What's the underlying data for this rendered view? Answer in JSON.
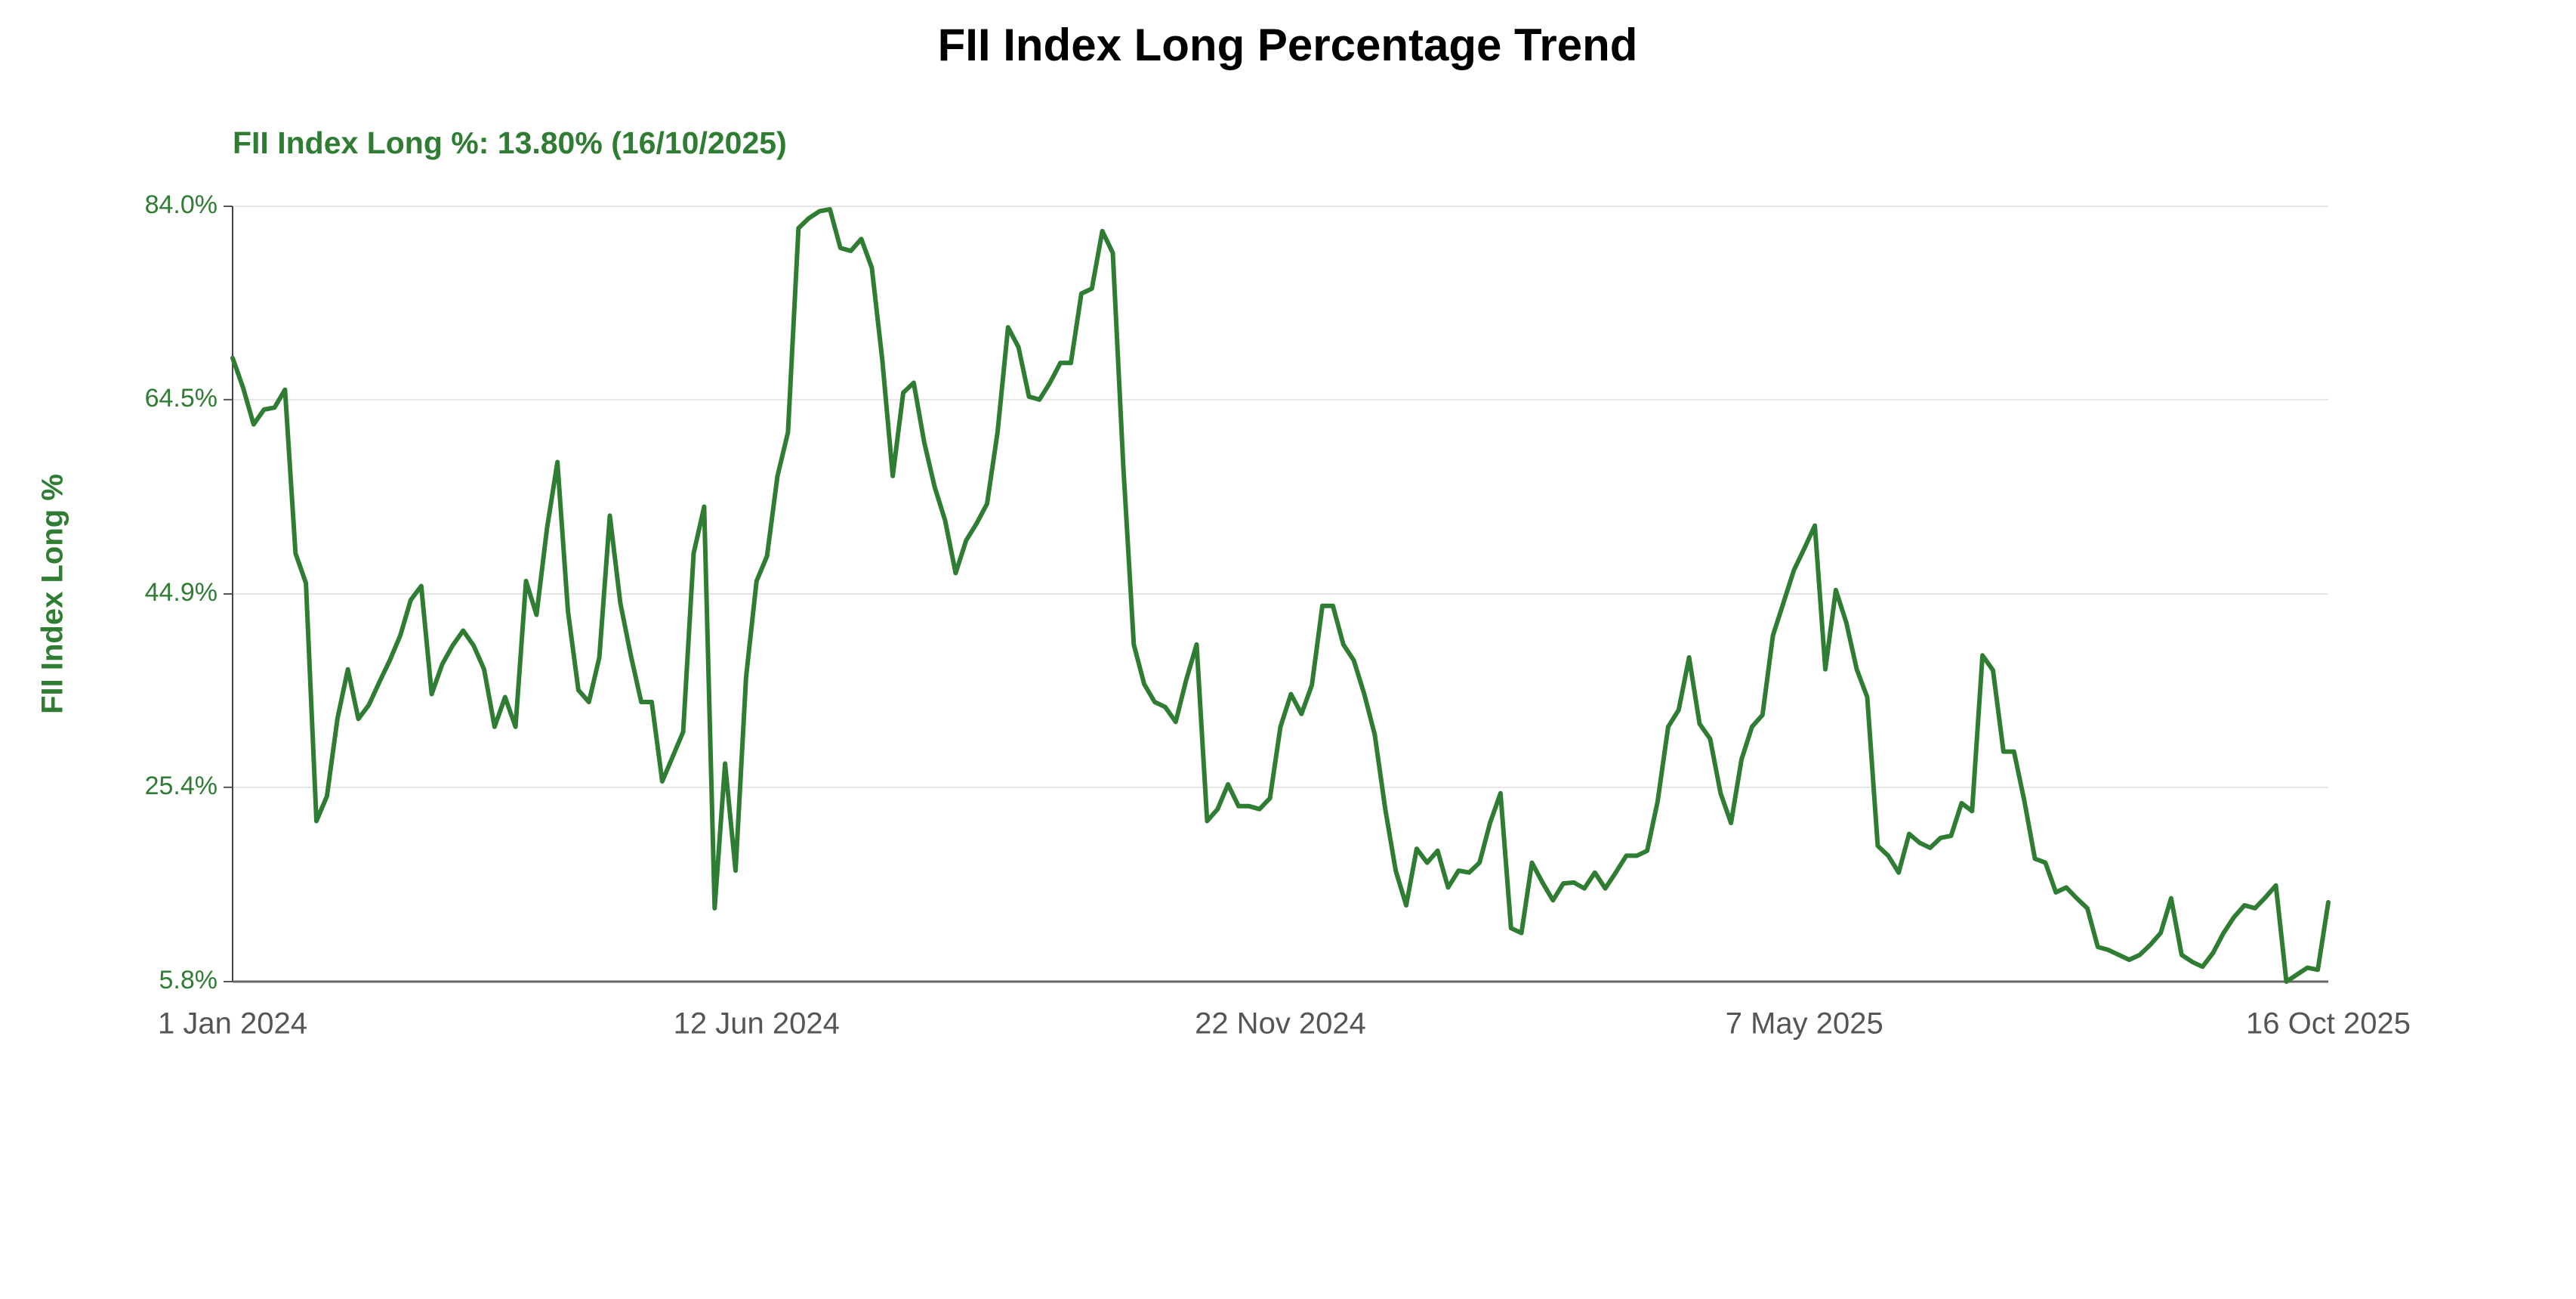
{
  "chart_data": {
    "type": "line",
    "title": "FII Index Long Percentage Trend",
    "annotation": "FII Index Long %: 13.80% (16/10/2025)",
    "ylabel": "FII Index Long %",
    "color": "#2e7d32",
    "grid": true,
    "ylim": [
      5.8,
      84.0
    ],
    "yticks": [
      {
        "value": 5.8,
        "label": "5.8%"
      },
      {
        "value": 25.4,
        "label": "25.4%"
      },
      {
        "value": 44.9,
        "label": "44.9%"
      },
      {
        "value": 64.5,
        "label": "64.5%"
      },
      {
        "value": 84.0,
        "label": "84.0%"
      }
    ],
    "categories": [
      "1 Jan 2024",
      null,
      null,
      null,
      null,
      null,
      null,
      null,
      null,
      null,
      null,
      null,
      null,
      null,
      null,
      null,
      null,
      null,
      null,
      null,
      null,
      null,
      null,
      null,
      null,
      null,
      null,
      null,
      null,
      null,
      null,
      null,
      null,
      null,
      null,
      null,
      null,
      null,
      null,
      null,
      null,
      null,
      null,
      null,
      null,
      null,
      null,
      null,
      null,
      null,
      "12 Jun 2024",
      null,
      null,
      null,
      null,
      null,
      null,
      null,
      null,
      null,
      null,
      null,
      null,
      null,
      null,
      null,
      null,
      null,
      null,
      null,
      null,
      null,
      null,
      null,
      null,
      null,
      null,
      null,
      null,
      null,
      null,
      null,
      null,
      null,
      null,
      null,
      null,
      null,
      null,
      null,
      null,
      null,
      null,
      null,
      null,
      null,
      null,
      null,
      null,
      null,
      "22 Nov 2024",
      null,
      null,
      null,
      null,
      null,
      null,
      null,
      null,
      null,
      null,
      null,
      null,
      null,
      null,
      null,
      null,
      null,
      null,
      null,
      null,
      null,
      null,
      null,
      null,
      null,
      null,
      null,
      null,
      null,
      null,
      null,
      null,
      null,
      null,
      null,
      null,
      null,
      null,
      null,
      null,
      null,
      null,
      null,
      null,
      null,
      null,
      null,
      null,
      null,
      "7 May 2025",
      null,
      null,
      null,
      null,
      null,
      null,
      null,
      null,
      null,
      null,
      null,
      null,
      null,
      null,
      null,
      null,
      null,
      null,
      null,
      null,
      null,
      null,
      null,
      null,
      null,
      null,
      null,
      null,
      null,
      null,
      null,
      null,
      null,
      null,
      null,
      null,
      null,
      null,
      null,
      null,
      null,
      null,
      null,
      null,
      null,
      null,
      null,
      null,
      null,
      "16 Oct 2025"
    ],
    "values": [
      68.7,
      65.7,
      62,
      63.5,
      63.7,
      65.5,
      49,
      46,
      22,
      24.5,
      32.3,
      37.3,
      32.3,
      33.7,
      36,
      38.2,
      40.7,
      44.3,
      45.7,
      34.8,
      37.8,
      39.7,
      41.2,
      39.7,
      37.3,
      31.5,
      34.5,
      31.5,
      46.2,
      42.8,
      51.5,
      58.2,
      43.2,
      35.2,
      34,
      38.5,
      52.8,
      44,
      38.7,
      34,
      34,
      26,
      28.5,
      31,
      49,
      53.7,
      13.2,
      27.8,
      17,
      36.5,
      46.2,
      48.7,
      56.8,
      61.2,
      81.8,
      82.8,
      83.5,
      83.7,
      79.8,
      79.5,
      80.7,
      77.8,
      68.5,
      56.8,
      65.2,
      66.2,
      60.2,
      55.7,
      52.3,
      47,
      50.3,
      52,
      54,
      61.2,
      71.8,
      69.8,
      64.8,
      64.5,
      66.2,
      68.2,
      68.2,
      75.2,
      75.7,
      81.5,
      79.3,
      57.8,
      39.8,
      35.8,
      34,
      33.5,
      32,
      36.2,
      39.8,
      22,
      23.2,
      25.7,
      23.5,
      23.5,
      23.2,
      24.3,
      31.5,
      34.8,
      32.8,
      35.7,
      43.7,
      43.7,
      39.8,
      38.2,
      34.8,
      30.7,
      23.2,
      17,
      13.5,
      19.2,
      17.8,
      19,
      15.3,
      17,
      16.8,
      17.8,
      21.8,
      24.8,
      11.2,
      10.7,
      17.8,
      15.8,
      14,
      15.7,
      15.8,
      15.2,
      16.8,
      15.2,
      16.8,
      18.5,
      18.5,
      19,
      24,
      31.5,
      33.2,
      38.5,
      31.8,
      30.3,
      24.8,
      21.8,
      28.2,
      31.5,
      32.7,
      40.7,
      44,
      47.3,
      49.5,
      51.8,
      37.3,
      45.3,
      42,
      37.3,
      34.5,
      19.5,
      18.5,
      16.8,
      20.7,
      19.8,
      19.3,
      20.3,
      20.5,
      23.8,
      23,
      38.7,
      37.2,
      29,
      29,
      24,
      18.2,
      17.8,
      14.8,
      15.3,
      14.2,
      13.2,
      9.3,
      9,
      8.5,
      8,
      8.5,
      9.5,
      10.7,
      14.2,
      8.5,
      7.8,
      7.3,
      8.7,
      10.7,
      12.3,
      13.5,
      13.2,
      14.3,
      15.5,
      5.8,
      6.5,
      7.2,
      7,
      13.8
    ]
  }
}
